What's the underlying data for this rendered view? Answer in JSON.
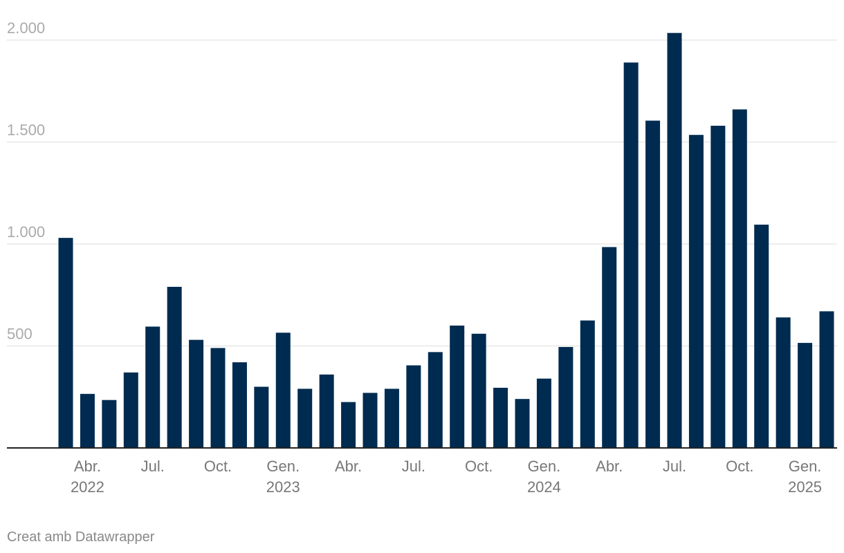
{
  "chart_data": {
    "type": "bar",
    "categories": [
      null,
      "Abr.",
      null,
      null,
      "Jul.",
      null,
      null,
      "Oct.",
      null,
      null,
      "Gen.",
      null,
      null,
      "Abr.",
      null,
      null,
      "Jul.",
      null,
      null,
      "Oct.",
      null,
      null,
      "Gen.",
      null,
      null,
      "Abr.",
      null,
      null,
      "Jul.",
      null,
      null,
      "Oct.",
      null,
      null,
      "Gen.",
      null
    ],
    "year_labels": [
      null,
      "2022",
      null,
      null,
      null,
      null,
      null,
      null,
      null,
      null,
      "2023",
      null,
      null,
      null,
      null,
      null,
      null,
      null,
      null,
      null,
      null,
      null,
      "2024",
      null,
      null,
      null,
      null,
      null,
      null,
      null,
      null,
      null,
      null,
      null,
      "2025",
      null
    ],
    "values": [
      1030,
      265,
      235,
      370,
      595,
      790,
      530,
      490,
      420,
      300,
      565,
      290,
      360,
      225,
      270,
      290,
      405,
      470,
      600,
      560,
      295,
      240,
      340,
      495,
      625,
      985,
      1890,
      1605,
      2035,
      1535,
      1580,
      1660,
      1095,
      640,
      515,
      670
    ],
    "color": "#002b50",
    "ylim": [
      0,
      2000
    ],
    "yticks": [
      500,
      {
        "value": 1000,
        "label": "1.000"
      },
      {
        "value": 1500,
        "label": "1.500"
      },
      {
        "value": 2000,
        "label": "2.000"
      }
    ],
    "grid": true,
    "footer": "Creat amb Datawrapper"
  }
}
